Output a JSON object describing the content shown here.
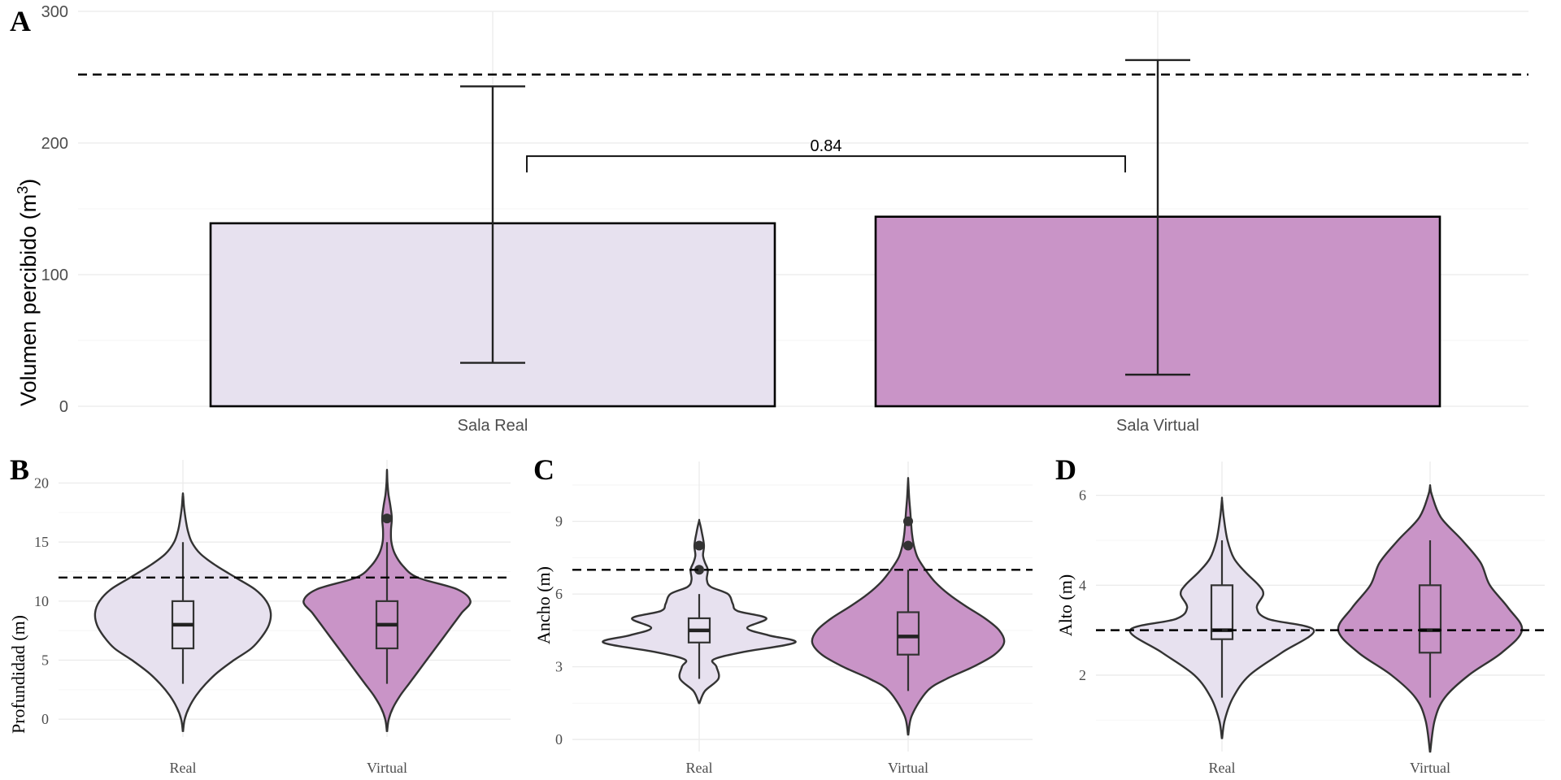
{
  "colors": {
    "real": "#e7e1ef",
    "virtual": "#c994c7"
  },
  "chart_data": [
    {
      "panel": "A",
      "type": "bar",
      "categories": [
        "Sala Real",
        "Sala Virtual"
      ],
      "values": [
        139,
        144
      ],
      "error_low": [
        33,
        24
      ],
      "error_high": [
        243,
        263
      ],
      "reference_line": 252,
      "ylabel": "Volumen percibido (m",
      "ylabel_sup": "3",
      "ylabel_close": ")",
      "ylim": [
        0,
        300
      ],
      "yticks": [
        "0",
        "100",
        "200",
        "300"
      ],
      "comparison": {
        "label": "0.84",
        "value": 190
      }
    },
    {
      "panel": "B",
      "type": "violin",
      "ylabel": "Profundidad (m)",
      "ylim": [
        -1.5,
        21
      ],
      "yticks": [
        0,
        5,
        10,
        15,
        20
      ],
      "reference_line": 12,
      "groups": [
        {
          "name": "Real",
          "box": {
            "min": 3,
            "q1": 6,
            "median": 8,
            "q3": 10,
            "max": 15
          },
          "outliers": [],
          "density": [
            [
              -1,
              0.002
            ],
            [
              0,
              0.02
            ],
            [
              1,
              0.07
            ],
            [
              2,
              0.15
            ],
            [
              3,
              0.26
            ],
            [
              4,
              0.4
            ],
            [
              5,
              0.58
            ],
            [
              6,
              0.78
            ],
            [
              7,
              0.9
            ],
            [
              8,
              0.98
            ],
            [
              9,
              1
            ],
            [
              10,
              0.95
            ],
            [
              11,
              0.82
            ],
            [
              12,
              0.6
            ],
            [
              13,
              0.38
            ],
            [
              14,
              0.2
            ],
            [
              15,
              0.1
            ],
            [
              16,
              0.055
            ],
            [
              17,
              0.03
            ],
            [
              18,
              0.012
            ],
            [
              19,
              0.002
            ]
          ]
        },
        {
          "name": "Virtual",
          "box": {
            "min": 3,
            "q1": 6,
            "median": 8,
            "q3": 10,
            "max": 15
          },
          "outliers": [
            17
          ],
          "density": [
            [
              -1,
              0.002
            ],
            [
              0,
              0.02
            ],
            [
              1,
              0.07
            ],
            [
              2,
              0.15
            ],
            [
              3,
              0.25
            ],
            [
              4,
              0.35
            ],
            [
              5,
              0.45
            ],
            [
              6,
              0.55
            ],
            [
              7,
              0.65
            ],
            [
              8,
              0.75
            ],
            [
              9,
              0.85
            ],
            [
              10,
              0.95
            ],
            [
              11,
              0.8
            ],
            [
              12,
              0.35
            ],
            [
              13,
              0.18
            ],
            [
              14,
              0.09
            ],
            [
              15,
              0.05
            ],
            [
              16,
              0.045
            ],
            [
              17,
              0.055
            ],
            [
              18,
              0.04
            ],
            [
              19,
              0.018
            ],
            [
              20,
              0.006
            ],
            [
              21,
              0.001
            ]
          ]
        }
      ]
    },
    {
      "panel": "C",
      "type": "violin",
      "ylabel": "Ancho (m)",
      "ylim": [
        -0.5,
        11
      ],
      "yticks": [
        0,
        3,
        6,
        9
      ],
      "reference_line": 7,
      "groups": [
        {
          "name": "Real",
          "box": {
            "min": 2.5,
            "q1": 4,
            "median": 4.5,
            "q3": 5,
            "max": 6
          },
          "outliers": [
            7,
            8
          ],
          "density": [
            [
              1.5,
              0.003
            ],
            [
              2,
              0.06
            ],
            [
              2.5,
              0.2
            ],
            [
              3,
              0.18
            ],
            [
              3.3,
              0.15
            ],
            [
              3.6,
              0.45
            ],
            [
              4,
              1
            ],
            [
              4.3,
              0.72
            ],
            [
              4.6,
              0.5
            ],
            [
              5,
              0.7
            ],
            [
              5.3,
              0.4
            ],
            [
              5.6,
              0.35
            ],
            [
              6,
              0.3
            ],
            [
              6.3,
              0.12
            ],
            [
              6.6,
              0.08
            ],
            [
              7,
              0.09
            ],
            [
              7.3,
              0.06
            ],
            [
              7.6,
              0.04
            ],
            [
              8,
              0.05
            ],
            [
              8.5,
              0.03
            ],
            [
              9,
              0.002
            ]
          ]
        },
        {
          "name": "Virtual",
          "box": {
            "min": 2,
            "q1": 3.5,
            "median": 4.25,
            "q3": 5.25,
            "max": 7
          },
          "outliers": [
            8,
            9
          ],
          "density": [
            [
              0.2,
              0.002
            ],
            [
              1,
              0.04
            ],
            [
              2,
              0.2
            ],
            [
              2.5,
              0.4
            ],
            [
              3,
              0.68
            ],
            [
              3.5,
              0.9
            ],
            [
              4,
              1
            ],
            [
              4.5,
              0.95
            ],
            [
              5,
              0.8
            ],
            [
              5.5,
              0.6
            ],
            [
              6,
              0.42
            ],
            [
              6.5,
              0.28
            ],
            [
              7,
              0.18
            ],
            [
              7.5,
              0.1
            ],
            [
              8,
              0.06
            ],
            [
              8.5,
              0.04
            ],
            [
              9,
              0.03
            ],
            [
              9.5,
              0.02
            ],
            [
              10,
              0.01
            ],
            [
              10.7,
              0.001
            ]
          ]
        }
      ]
    },
    {
      "panel": "D",
      "type": "violin",
      "ylabel": "Alto (m)",
      "ylim": [
        0.3,
        6.5
      ],
      "yticks": [
        2,
        4,
        6
      ],
      "reference_line": 3,
      "groups": [
        {
          "name": "Real",
          "box": {
            "min": 1.5,
            "q1": 2.8,
            "median": 3,
            "q3": 4,
            "max": 5
          },
          "outliers": [],
          "density": [
            [
              0.6,
              0.002
            ],
            [
              1,
              0.03
            ],
            [
              1.5,
              0.12
            ],
            [
              2,
              0.3
            ],
            [
              2.5,
              0.65
            ],
            [
              3,
              1
            ],
            [
              3.25,
              0.5
            ],
            [
              3.5,
              0.38
            ],
            [
              3.8,
              0.45
            ],
            [
              4,
              0.4
            ],
            [
              4.3,
              0.25
            ],
            [
              4.6,
              0.13
            ],
            [
              5,
              0.06
            ],
            [
              5.5,
              0.02
            ],
            [
              5.9,
              0.001
            ]
          ]
        },
        {
          "name": "Virtual",
          "box": {
            "min": 1.5,
            "q1": 2.5,
            "median": 3,
            "q3": 4,
            "max": 5
          },
          "outliers": [],
          "density": [
            [
              0.3,
              0.002
            ],
            [
              1,
              0.05
            ],
            [
              1.5,
              0.16
            ],
            [
              2,
              0.42
            ],
            [
              2.5,
              0.78
            ],
            [
              3,
              1
            ],
            [
              3.5,
              0.85
            ],
            [
              4,
              0.65
            ],
            [
              4.5,
              0.55
            ],
            [
              5,
              0.35
            ],
            [
              5.5,
              0.12
            ],
            [
              6,
              0.02
            ],
            [
              6.2,
              0.001
            ]
          ]
        }
      ]
    }
  ]
}
